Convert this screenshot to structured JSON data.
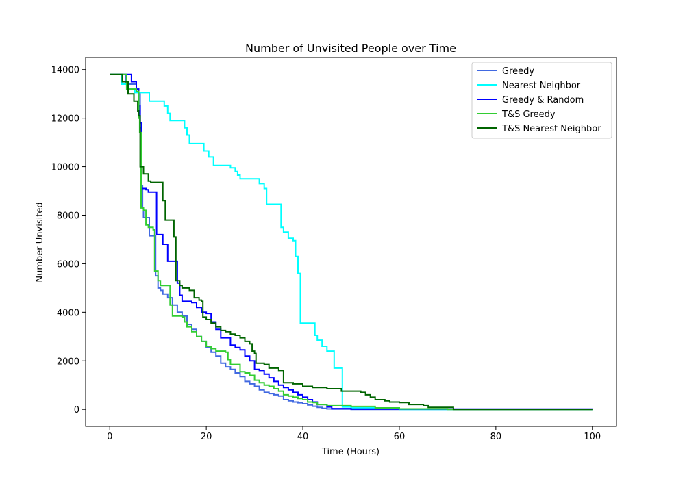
{
  "chart_data": {
    "type": "line",
    "title": "Number of Unvisited People over Time",
    "xlabel": "Time (Hours)",
    "ylabel": "Number Unvisited",
    "xlim": [
      -5,
      105
    ],
    "ylim": [
      -700,
      14500
    ],
    "xticks": [
      0,
      20,
      40,
      60,
      80,
      100
    ],
    "yticks": [
      0,
      2000,
      4000,
      6000,
      8000,
      10000,
      12000,
      14000
    ],
    "grid": false,
    "legend_position": "top-right",
    "series": [
      {
        "name": "Greedy",
        "color": "#4169e1",
        "points": [
          [
            0,
            13800
          ],
          [
            3,
            13800
          ],
          [
            3.3,
            13400
          ],
          [
            5,
            13400
          ],
          [
            5.5,
            13200
          ],
          [
            6,
            13000
          ],
          [
            6.3,
            11600
          ],
          [
            6.6,
            9200
          ],
          [
            6.8,
            8300
          ],
          [
            7,
            7900
          ],
          [
            8,
            7900
          ],
          [
            8.2,
            7150
          ],
          [
            9.3,
            7150
          ],
          [
            9.5,
            5500
          ],
          [
            10,
            5000
          ],
          [
            10.5,
            4900
          ],
          [
            11,
            4750
          ],
          [
            12,
            4600
          ],
          [
            13,
            4300
          ],
          [
            14,
            4000
          ],
          [
            15,
            3850
          ],
          [
            16,
            3500
          ],
          [
            17,
            3300
          ],
          [
            18,
            3000
          ],
          [
            19,
            2800
          ],
          [
            20,
            2550
          ],
          [
            21,
            2350
          ],
          [
            22,
            2200
          ],
          [
            23,
            1900
          ],
          [
            24,
            1750
          ],
          [
            25,
            1650
          ],
          [
            26,
            1500
          ],
          [
            27,
            1350
          ],
          [
            28,
            1150
          ],
          [
            29,
            1050
          ],
          [
            30,
            950
          ],
          [
            31,
            800
          ],
          [
            32,
            700
          ],
          [
            33,
            650
          ],
          [
            34,
            600
          ],
          [
            35,
            550
          ],
          [
            36,
            400
          ],
          [
            37,
            350
          ],
          [
            38,
            300
          ],
          [
            39,
            270
          ],
          [
            40,
            230
          ],
          [
            41,
            180
          ],
          [
            42,
            130
          ],
          [
            43,
            80
          ],
          [
            44,
            40
          ],
          [
            45,
            20
          ],
          [
            46,
            10
          ],
          [
            50,
            0
          ],
          [
            100,
            0
          ]
        ]
      },
      {
        "name": "Nearest Neighbor",
        "color": "#00ffff",
        "points": [
          [
            0,
            13800
          ],
          [
            2.3,
            13800
          ],
          [
            2.5,
            13400
          ],
          [
            3.5,
            13400
          ],
          [
            3.8,
            13200
          ],
          [
            5,
            13200
          ],
          [
            5.2,
            13050
          ],
          [
            8,
            13050
          ],
          [
            8.2,
            12700
          ],
          [
            11,
            12700
          ],
          [
            11.3,
            12500
          ],
          [
            12,
            12200
          ],
          [
            12.5,
            11900
          ],
          [
            15,
            11900
          ],
          [
            15.5,
            11600
          ],
          [
            16,
            11300
          ],
          [
            16.5,
            10950
          ],
          [
            19,
            10950
          ],
          [
            19.5,
            10650
          ],
          [
            20.5,
            10400
          ],
          [
            21.5,
            10050
          ],
          [
            24,
            10050
          ],
          [
            25,
            9950
          ],
          [
            26,
            9800
          ],
          [
            26.5,
            9650
          ],
          [
            27,
            9500
          ],
          [
            30,
            9500
          ],
          [
            31,
            9300
          ],
          [
            32,
            9100
          ],
          [
            32.5,
            8450
          ],
          [
            35,
            8450
          ],
          [
            35.5,
            7500
          ],
          [
            36,
            7300
          ],
          [
            37,
            7050
          ],
          [
            38,
            6950
          ],
          [
            38.5,
            6300
          ],
          [
            39,
            5600
          ],
          [
            39.5,
            3550
          ],
          [
            42,
            3550
          ],
          [
            42.5,
            3050
          ],
          [
            43,
            2850
          ],
          [
            44,
            2600
          ],
          [
            45,
            2400
          ],
          [
            46,
            2400
          ],
          [
            46.5,
            1700
          ],
          [
            48,
            1700
          ],
          [
            48.2,
            100
          ],
          [
            50,
            60
          ],
          [
            55,
            20
          ],
          [
            60,
            0
          ],
          [
            100,
            0
          ]
        ]
      },
      {
        "name": "Greedy & Random",
        "color": "#0000ff",
        "points": [
          [
            0,
            13800
          ],
          [
            4,
            13800
          ],
          [
            4.5,
            13500
          ],
          [
            5,
            13500
          ],
          [
            5.5,
            13200
          ],
          [
            6,
            12500
          ],
          [
            6.3,
            11800
          ],
          [
            6.6,
            9100
          ],
          [
            7.5,
            9050
          ],
          [
            8,
            8950
          ],
          [
            9.5,
            8950
          ],
          [
            9.7,
            7200
          ],
          [
            10.5,
            7200
          ],
          [
            11,
            6800
          ],
          [
            12,
            6100
          ],
          [
            13.5,
            6100
          ],
          [
            14,
            5200
          ],
          [
            14.5,
            4700
          ],
          [
            15,
            4450
          ],
          [
            17,
            4400
          ],
          [
            18,
            4200
          ],
          [
            19,
            4000
          ],
          [
            20,
            3950
          ],
          [
            21,
            3600
          ],
          [
            22,
            3300
          ],
          [
            23,
            2950
          ],
          [
            24,
            2950
          ],
          [
            25,
            2650
          ],
          [
            26,
            2550
          ],
          [
            27,
            2450
          ],
          [
            28,
            2200
          ],
          [
            29,
            2000
          ],
          [
            30,
            1650
          ],
          [
            31,
            1600
          ],
          [
            32,
            1450
          ],
          [
            33,
            1300
          ],
          [
            34,
            1150
          ],
          [
            35,
            1000
          ],
          [
            36,
            900
          ],
          [
            37,
            800
          ],
          [
            38,
            700
          ],
          [
            39,
            600
          ],
          [
            40,
            500
          ],
          [
            41,
            400
          ],
          [
            42,
            300
          ],
          [
            43,
            200
          ],
          [
            45,
            100
          ],
          [
            46,
            30
          ],
          [
            50,
            10
          ],
          [
            100,
            0
          ]
        ]
      },
      {
        "name": "T&S Greedy",
        "color": "#32cd32",
        "points": [
          [
            0,
            13800
          ],
          [
            3,
            13800
          ],
          [
            3.5,
            13200
          ],
          [
            5,
            13200
          ],
          [
            5.5,
            13100
          ],
          [
            6,
            12000
          ],
          [
            6.2,
            11400
          ],
          [
            6.5,
            8300
          ],
          [
            7,
            8200
          ],
          [
            7.5,
            7600
          ],
          [
            8,
            7500
          ],
          [
            9,
            7400
          ],
          [
            9.3,
            5700
          ],
          [
            10,
            5300
          ],
          [
            10.5,
            5100
          ],
          [
            12,
            5100
          ],
          [
            12.5,
            4300
          ],
          [
            13,
            3850
          ],
          [
            15,
            3800
          ],
          [
            15.5,
            3600
          ],
          [
            16,
            3400
          ],
          [
            17,
            3200
          ],
          [
            18,
            3000
          ],
          [
            19,
            2800
          ],
          [
            20,
            2600
          ],
          [
            21,
            2500
          ],
          [
            22,
            2400
          ],
          [
            24,
            2350
          ],
          [
            24.5,
            2050
          ],
          [
            25,
            1850
          ],
          [
            26,
            1850
          ],
          [
            27,
            1550
          ],
          [
            28,
            1500
          ],
          [
            29,
            1400
          ],
          [
            30,
            1200
          ],
          [
            31,
            1100
          ],
          [
            32,
            1000
          ],
          [
            33,
            950
          ],
          [
            34,
            850
          ],
          [
            35,
            750
          ],
          [
            36,
            600
          ],
          [
            37,
            550
          ],
          [
            38,
            500
          ],
          [
            39,
            450
          ],
          [
            40,
            400
          ],
          [
            41,
            300
          ],
          [
            42,
            280
          ],
          [
            43,
            200
          ],
          [
            45,
            150
          ],
          [
            48,
            150
          ],
          [
            50,
            120
          ],
          [
            55,
            60
          ],
          [
            60,
            20
          ],
          [
            70,
            0
          ],
          [
            100,
            0
          ]
        ]
      },
      {
        "name": "T&S Nearest Neighbor",
        "color": "#006400",
        "points": [
          [
            0,
            13800
          ],
          [
            2.3,
            13800
          ],
          [
            2.6,
            13500
          ],
          [
            3.5,
            13500
          ],
          [
            3.8,
            13000
          ],
          [
            5,
            12700
          ],
          [
            5.8,
            12300
          ],
          [
            6,
            12100
          ],
          [
            6.3,
            10000
          ],
          [
            7,
            9700
          ],
          [
            8,
            9400
          ],
          [
            8.5,
            9350
          ],
          [
            10.5,
            9350
          ],
          [
            11,
            8600
          ],
          [
            11.5,
            7800
          ],
          [
            13,
            7800
          ],
          [
            13.3,
            7100
          ],
          [
            13.7,
            5300
          ],
          [
            14.5,
            5100
          ],
          [
            15,
            5000
          ],
          [
            16.5,
            4900
          ],
          [
            17.5,
            4600
          ],
          [
            18.5,
            4500
          ],
          [
            19,
            4450
          ],
          [
            19.3,
            3800
          ],
          [
            20,
            3700
          ],
          [
            21,
            3550
          ],
          [
            22,
            3400
          ],
          [
            23,
            3250
          ],
          [
            24,
            3200
          ],
          [
            25,
            3100
          ],
          [
            26,
            3050
          ],
          [
            27,
            2950
          ],
          [
            28,
            2800
          ],
          [
            29,
            2700
          ],
          [
            29.5,
            2400
          ],
          [
            30,
            2300
          ],
          [
            30.3,
            1900
          ],
          [
            32,
            1850
          ],
          [
            33,
            1700
          ],
          [
            35,
            1600
          ],
          [
            36,
            1100
          ],
          [
            38,
            1050
          ],
          [
            40,
            950
          ],
          [
            42,
            900
          ],
          [
            45,
            850
          ],
          [
            48,
            750
          ],
          [
            52,
            700
          ],
          [
            53,
            600
          ],
          [
            54,
            500
          ],
          [
            55,
            400
          ],
          [
            57,
            350
          ],
          [
            58,
            300
          ],
          [
            60,
            280
          ],
          [
            62,
            200
          ],
          [
            65,
            150
          ],
          [
            66,
            80
          ],
          [
            71,
            80
          ],
          [
            71.2,
            0
          ],
          [
            100,
            0
          ]
        ]
      }
    ]
  }
}
